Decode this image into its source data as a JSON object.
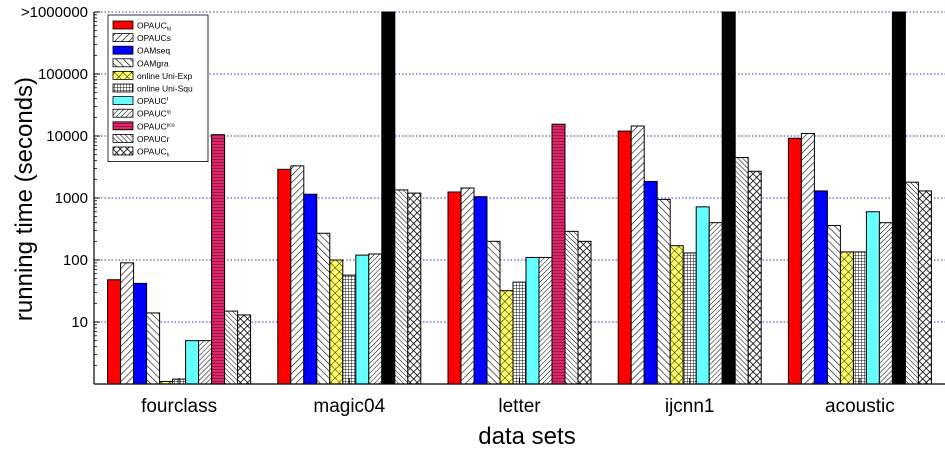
{
  "chart_data": {
    "type": "bar",
    "xlabel": "data sets",
    "ylabel": "running time (seconds)",
    "y_scale": "log",
    "ylim": [
      1,
      1000000
    ],
    "y_ticks": [
      {
        "value": 10,
        "label": "10"
      },
      {
        "value": 100,
        "label": "100"
      },
      {
        "value": 1000,
        "label": "1000"
      },
      {
        "value": 10000,
        "label": "10000"
      },
      {
        "value": 100000,
        "label": "100000"
      },
      {
        "value": 1000000,
        "label": ">1000000"
      }
    ],
    "grid": "horizontal dotted",
    "legend_position": "top-left",
    "categories": [
      "fourclass",
      "magic04",
      "letter",
      "ijcnn1",
      "acoustic"
    ],
    "series": [
      {
        "name": "OPAUC",
        "sub": "fd",
        "color": "#ff0000",
        "pattern": "solid",
        "values": [
          48,
          2900,
          1250,
          12000,
          9200
        ]
      },
      {
        "name": "OPAUCs",
        "sub": "",
        "color": "#ffffff",
        "pattern": "diag-right",
        "values": [
          90,
          3300,
          1450,
          14500,
          11000
        ]
      },
      {
        "name": "OAMseq",
        "sub": "",
        "color": "#0000ff",
        "pattern": "solid",
        "values": [
          42,
          1150,
          1050,
          1850,
          1300
        ]
      },
      {
        "name": "OAMgra",
        "sub": "",
        "color": "#ffffff",
        "pattern": "diag-left",
        "values": [
          14,
          270,
          200,
          950,
          360
        ]
      },
      {
        "name": "online Uni-Exp",
        "sub": "",
        "color": "#ffff66",
        "pattern": "crosshatch",
        "values": [
          1.1,
          100,
          32,
          170,
          135
        ]
      },
      {
        "name": "online Uni-Squ",
        "sub": "",
        "color": "#ffffff",
        "pattern": "grid",
        "values": [
          1.2,
          57,
          44,
          130,
          135
        ]
      },
      {
        "name": "OPAUC",
        "sub": "f",
        "color": "#66ffff",
        "pattern": "solid",
        "values": [
          5,
          120,
          110,
          720,
          600
        ]
      },
      {
        "name": "OPAUC",
        "sub": "rp",
        "color": "#ffffff",
        "pattern": "diag-right-dense",
        "values": [
          5,
          125,
          110,
          400,
          400
        ]
      },
      {
        "name": "OPAUC",
        "sub": "pca",
        "color": "#e2266b",
        "pattern": "horizontal",
        "values": [
          10500,
          1000000,
          15500,
          1000000,
          1000000
        ]
      },
      {
        "name": "OPAUCr",
        "sub": "",
        "color": "#ffffff",
        "pattern": "diag-left-dense",
        "values": [
          15,
          1350,
          290,
          4500,
          1800
        ]
      },
      {
        "name": "OPAUC",
        "sub": "h",
        "color": "#ffffff",
        "pattern": "dots",
        "values": [
          13,
          1200,
          200,
          2700,
          1300
        ]
      }
    ],
    "overflow_color": "#000000"
  }
}
